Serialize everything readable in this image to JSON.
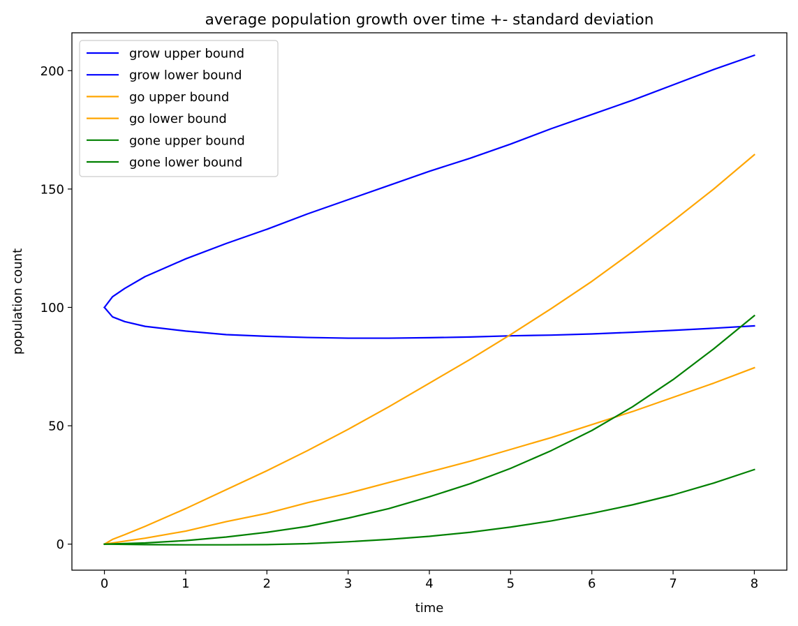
{
  "chart_data": {
    "type": "line",
    "title": "average population growth over time +- standard deviation",
    "xlabel": "time",
    "ylabel": "population count",
    "xlim": [
      -0.4,
      8.4
    ],
    "ylim": [
      -11,
      216
    ],
    "xticks": [
      0,
      1,
      2,
      3,
      4,
      5,
      6,
      7,
      8
    ],
    "yticks": [
      0,
      50,
      100,
      150,
      200
    ],
    "grid": false,
    "legend_position": "top-left",
    "series": [
      {
        "name": "grow upper bound",
        "color": "#0000ff",
        "x": [
          0,
          0.1,
          0.25,
          0.5,
          1,
          1.5,
          2,
          2.5,
          3,
          3.5,
          4,
          4.5,
          5,
          5.5,
          6,
          6.5,
          7,
          7.5,
          8
        ],
        "y": [
          100,
          104.5,
          108,
          113,
          120.5,
          127,
          133,
          139.5,
          145.5,
          151.5,
          157.5,
          163,
          169,
          175.5,
          181.5,
          187.5,
          194,
          200.5,
          206.5
        ]
      },
      {
        "name": "grow lower bound",
        "color": "#0000ff",
        "x": [
          0,
          0.1,
          0.25,
          0.5,
          1,
          1.5,
          2,
          2.5,
          3,
          3.5,
          4,
          4.5,
          5,
          5.5,
          6,
          6.5,
          7,
          7.5,
          8
        ],
        "y": [
          100,
          96,
          94,
          92,
          90,
          88.5,
          87.8,
          87.3,
          87,
          87,
          87.2,
          87.5,
          88,
          88.3,
          88.8,
          89.5,
          90.3,
          91.2,
          92.2
        ]
      },
      {
        "name": "go upper bound",
        "color": "#ffa500",
        "x": [
          0,
          0.1,
          0.25,
          0.5,
          1,
          1.5,
          2,
          2.5,
          3,
          3.5,
          4,
          4.5,
          5,
          5.5,
          6,
          6.5,
          7,
          7.5,
          8
        ],
        "y": [
          0,
          2,
          4,
          7.5,
          15,
          23,
          31,
          39.5,
          48.5,
          58,
          68,
          78,
          88.5,
          99.5,
          111,
          123.5,
          136.5,
          150,
          164.5
        ]
      },
      {
        "name": "go lower bound",
        "color": "#ffa500",
        "x": [
          0,
          0.5,
          1,
          1.5,
          2,
          2.5,
          3,
          3.5,
          4,
          4.5,
          5,
          5.5,
          6,
          6.5,
          7,
          7.5,
          8
        ],
        "y": [
          0,
          2.5,
          5.5,
          9.5,
          13,
          17.5,
          21.5,
          26,
          30.5,
          35,
          40,
          45,
          50.5,
          56,
          62,
          68,
          74.5
        ]
      },
      {
        "name": "gone upper bound",
        "color": "#008000",
        "x": [
          0,
          0.5,
          1,
          1.5,
          2,
          2.5,
          3,
          3.5,
          4,
          4.5,
          5,
          5.5,
          6,
          6.5,
          7,
          7.5,
          8
        ],
        "y": [
          0,
          0.5,
          1.5,
          3,
          5,
          7.5,
          11,
          15,
          20,
          25.5,
          32,
          39.5,
          48,
          58,
          69.5,
          82.5,
          96.5
        ]
      },
      {
        "name": "gone lower bound",
        "color": "#008000",
        "x": [
          0,
          0.5,
          1,
          1.5,
          2,
          2.5,
          3,
          3.5,
          4,
          4.5,
          5,
          5.5,
          6,
          6.5,
          7,
          7.5,
          8
        ],
        "y": [
          0,
          -0.2,
          -0.3,
          -0.3,
          -0.2,
          0.2,
          1,
          2,
          3.3,
          5,
          7.2,
          9.8,
          13,
          16.6,
          20.8,
          25.8,
          31.5
        ]
      }
    ]
  }
}
